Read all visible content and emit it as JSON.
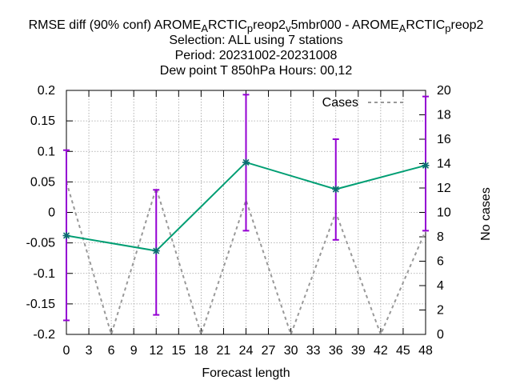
{
  "chart_data": {
    "type": "line",
    "title_lines": [
      {
        "parts": [
          {
            "text": "RMSE diff (90% conf) AROME",
            "sub": false
          },
          {
            "text": "A",
            "sub": true
          },
          {
            "text": "RCTIC",
            "sub": false
          },
          {
            "text": "p",
            "sub": true
          },
          {
            "text": "reop2",
            "sub": false
          },
          {
            "text": "v",
            "sub": true
          },
          {
            "text": "5mbr000 - AROME",
            "sub": false
          },
          {
            "text": "A",
            "sub": true
          },
          {
            "text": "RCTIC",
            "sub": false
          },
          {
            "text": "p",
            "sub": true
          },
          {
            "text": "reop2",
            "sub": false
          }
        ]
      },
      {
        "parts": [
          {
            "text": "Selection: ALL using     7 stations",
            "sub": false
          }
        ]
      },
      {
        "parts": [
          {
            "text": "Period: 20231002-20231008",
            "sub": false
          }
        ]
      },
      {
        "parts": [
          {
            "text": "Dew point T 850hPa   Hours:  00,12",
            "sub": false
          }
        ]
      }
    ],
    "xlabel": "Forecast length",
    "y2label": "No cases",
    "x_ticks": [
      0,
      3,
      6,
      9,
      12,
      15,
      18,
      21,
      24,
      27,
      30,
      33,
      36,
      39,
      42,
      45,
      48
    ],
    "y_ticks": [
      "0.2",
      "0.15",
      "0.1",
      "0.05",
      "0",
      "-0.05",
      "-0.1",
      "-0.15",
      "-0.2"
    ],
    "y_tick_values": [
      0.2,
      0.15,
      0.1,
      0.05,
      0,
      -0.05,
      -0.1,
      -0.15,
      -0.2
    ],
    "y2_ticks": [
      0,
      2,
      4,
      6,
      8,
      10,
      12,
      14,
      16,
      18,
      20
    ],
    "xlim": [
      0,
      48
    ],
    "ylim": [
      -0.2,
      0.2
    ],
    "y2lim": [
      0,
      20
    ],
    "grid": true,
    "legend_position": "top-right",
    "series": [
      {
        "name": "Cases",
        "axis": "y2",
        "style": "dashed",
        "color": "#999999",
        "x": [
          0,
          6,
          12,
          18,
          24,
          30,
          36,
          42,
          48
        ],
        "values": [
          12.5,
          0,
          12,
          0,
          11,
          0,
          10,
          0,
          8.5
        ]
      },
      {
        "name": "",
        "axis": "y",
        "style": "solid",
        "color": "#009e73",
        "marker_color": "#0a6d70",
        "x": [
          0,
          12,
          24,
          36,
          48
        ],
        "values": [
          -0.038,
          -0.063,
          0.082,
          0.038,
          0.077
        ],
        "error_low": [
          -0.177,
          -0.168,
          -0.03,
          -0.045,
          -0.03
        ],
        "error_high": [
          0.102,
          0.037,
          0.193,
          0.12,
          0.19
        ],
        "error_color": "#9400d3"
      }
    ]
  }
}
